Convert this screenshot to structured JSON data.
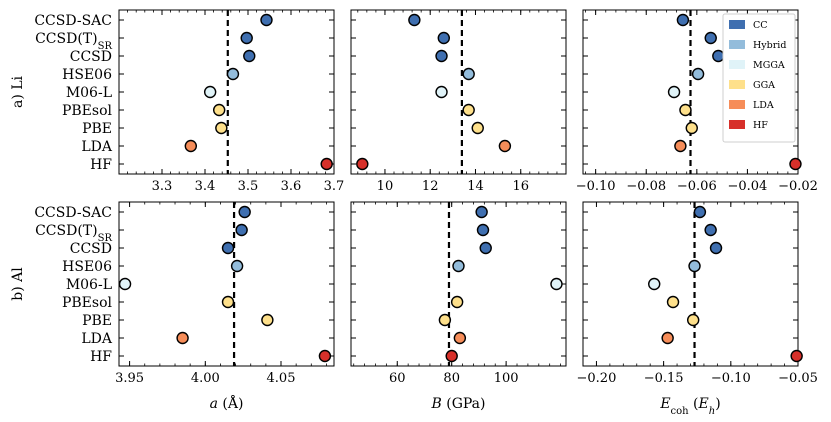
{
  "chart_data": {
    "type": "scatter",
    "categories": [
      "CCSD-SAC",
      "CCSD(T)SR",
      "CCSD",
      "HSE06",
      "M06-L",
      "PBEsol",
      "PBE",
      "LDA",
      "HF"
    ],
    "category_groups": [
      "CC",
      "CC",
      "CC",
      "Hybrid",
      "MGGA",
      "GGA",
      "GGA",
      "LDA",
      "HF"
    ],
    "legend": [
      {
        "name": "CC",
        "color": "#3f6fb0"
      },
      {
        "name": "Hybrid",
        "color": "#93bcdb"
      },
      {
        "name": "MGGA",
        "color": "#e0f3f8"
      },
      {
        "name": "GGA",
        "color": "#fee08b"
      },
      {
        "name": "LDA",
        "color": "#f68d59"
      },
      {
        "name": "HF",
        "color": "#d7302a"
      }
    ],
    "rows": [
      {
        "label": "a) Li",
        "panels": [
          {
            "quantity": "a",
            "unit": "Å",
            "xlim": [
              3.2,
              3.7
            ],
            "ticks": [
              3.3,
              3.4,
              3.5,
              3.6,
              3.7
            ],
            "tick_labels": [
              "3.3",
              "3.4",
              "3.5",
              "3.6",
              "3.7"
            ],
            "reference": 3.453,
            "values": [
              3.543,
              3.497,
              3.503,
              3.465,
              3.412,
              3.433,
              3.438,
              3.367,
              3.683
            ]
          },
          {
            "quantity": "B",
            "unit": "GPa",
            "xlim": [
              8.5,
              18.0
            ],
            "ticks": [
              10,
              12,
              14,
              16
            ],
            "tick_labels": [
              "10",
              "12",
              "14",
              "16"
            ],
            "reference": 13.4,
            "values": [
              11.3,
              12.6,
              12.5,
              13.7,
              12.5,
              13.7,
              14.1,
              15.3,
              9.0
            ]
          },
          {
            "quantity": "E_coh",
            "unit": "E_h",
            "xlim": [
              -0.105,
              -0.02
            ],
            "ticks": [
              -0.1,
              -0.08,
              -0.06,
              -0.04,
              -0.02
            ],
            "tick_labels": [
              "−0.10",
              "−0.08",
              "−0.06",
              "−0.04",
              "−0.02"
            ],
            "reference": -0.0625,
            "values": [
              -0.0655,
              -0.0545,
              -0.0515,
              -0.0595,
              -0.069,
              -0.0645,
              -0.062,
              -0.0665,
              -0.021
            ]
          }
        ]
      },
      {
        "label": "b) Al",
        "panels": [
          {
            "quantity": "a",
            "unit": "Å",
            "xlim": [
              3.943,
              4.085
            ],
            "ticks": [
              3.95,
              4.0,
              4.05
            ],
            "tick_labels": [
              "3.95",
              "4.00",
              "4.05"
            ],
            "reference": 4.019,
            "values": [
              4.026,
              4.024,
              4.015,
              4.021,
              3.947,
              4.015,
              4.041,
              3.985,
              4.079
            ]
          },
          {
            "quantity": "B",
            "unit": "GPa",
            "xlim": [
              43,
              122
            ],
            "ticks": [
              60,
              80,
              100
            ],
            "tick_labels": [
              "60",
              "80",
              "100"
            ],
            "reference": 79,
            "values": [
              91,
              91.5,
              92.5,
              82.5,
              118.5,
              82,
              77.5,
              83,
              80
            ]
          },
          {
            "quantity": "E_coh",
            "unit": "E_h",
            "xlim": [
              -0.21,
              -0.05
            ],
            "ticks": [
              -0.2,
              -0.15,
              -0.1,
              -0.05
            ],
            "tick_labels": [
              "−0.20",
              "−0.15",
              "−0.10",
              "−0.05"
            ],
            "reference": -0.127,
            "values": [
              -0.123,
              -0.115,
              -0.111,
              -0.127,
              -0.157,
              -0.143,
              -0.128,
              -0.147,
              -0.051
            ]
          }
        ]
      }
    ],
    "xlabels": [
      {
        "symbol": "a",
        "unit": "Å"
      },
      {
        "symbol": "B",
        "unit": "GPa"
      },
      {
        "symbol": "E",
        "sub": "coh",
        "unit_symbol": "E",
        "unit_sub": "h"
      }
    ]
  }
}
